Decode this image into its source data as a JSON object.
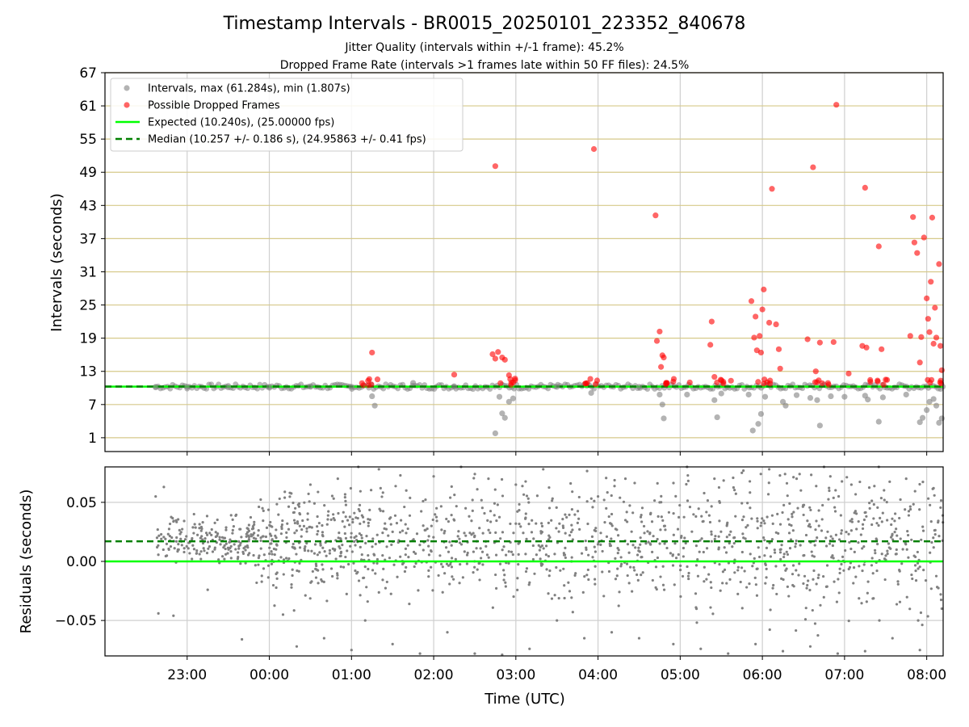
{
  "figure": {
    "title": "Timestamp Intervals - BR0015_20250101_223352_840678",
    "subtitle_1": "Jitter Quality (intervals within +/-1 frame): 45.2%",
    "subtitle_2": "Dropped Frame Rate (intervals >1 frames late within 50 FF files): 24.5%"
  },
  "chart_data": [
    {
      "type": "scatter",
      "ylabel": "Intervals (seconds)",
      "ylim": [
        -1.5,
        67
      ],
      "xlim": [
        "22:00",
        "08:12"
      ],
      "yticks": [
        "1",
        "7",
        "13",
        "19",
        "25",
        "31",
        "37",
        "43",
        "49",
        "55",
        "61",
        "67"
      ],
      "grid": true,
      "legend_position": "top-left",
      "legend": [
        {
          "label": "Intervals, max (61.284s), min (1.807s)",
          "color": "#808080",
          "kind": "marker"
        },
        {
          "label": "Possible Dropped Frames",
          "color": "#ff0000",
          "kind": "marker"
        },
        {
          "label": "Expected (10.240s), (25.00000 fps)",
          "color": "#00ff00",
          "kind": "solid-line"
        },
        {
          "label": "Median (10.257 +/- 0.186 s), (24.95863 +/- 0.41 fps)",
          "color": "#008000",
          "kind": "dashed-line"
        }
      ],
      "expected": 10.24,
      "median": 10.257,
      "series": [
        {
          "name": "Intervals, max (61.284s), min (1.807s)",
          "color": "#808080",
          "points": [
            [
              "22:37",
              10.1
            ],
            [
              "23:00",
              10.2
            ],
            [
              "23:30",
              10.1
            ],
            [
              "00:00",
              10.2
            ],
            [
              "00:30",
              10.3
            ],
            [
              "01:00",
              10.2
            ],
            [
              "01:15",
              8.5
            ],
            [
              "01:17",
              6.8
            ],
            [
              "01:45",
              10.9
            ],
            [
              "02:15",
              10.3
            ],
            [
              "02:45",
              1.8
            ],
            [
              "02:48",
              8.4
            ],
            [
              "02:50",
              5.4
            ],
            [
              "02:52",
              4.6
            ],
            [
              "02:55",
              7.5
            ],
            [
              "02:58",
              8.1
            ],
            [
              "03:30",
              10.2
            ],
            [
              "03:55",
              9.1
            ],
            [
              "04:30",
              10.2
            ],
            [
              "04:45",
              8.8
            ],
            [
              "04:48",
              4.5
            ],
            [
              "04:47",
              7.0
            ],
            [
              "05:05",
              8.8
            ],
            [
              "05:25",
              7.8
            ],
            [
              "05:27",
              4.7
            ],
            [
              "05:30",
              9.0
            ],
            [
              "05:50",
              8.8
            ],
            [
              "05:53",
              2.3
            ],
            [
              "05:57",
              3.5
            ],
            [
              "05:59",
              5.3
            ],
            [
              "06:02",
              8.4
            ],
            [
              "06:15",
              7.5
            ],
            [
              "06:17",
              6.8
            ],
            [
              "06:25",
              8.7
            ],
            [
              "06:35",
              8.2
            ],
            [
              "06:40",
              7.8
            ],
            [
              "06:42",
              3.2
            ],
            [
              "06:50",
              8.5
            ],
            [
              "07:00",
              8.4
            ],
            [
              "07:15",
              8.6
            ],
            [
              "07:17",
              7.9
            ],
            [
              "07:25",
              3.9
            ],
            [
              "07:28",
              8.3
            ],
            [
              "07:45",
              8.8
            ],
            [
              "07:55",
              3.8
            ],
            [
              "07:57",
              4.6
            ],
            [
              "08:00",
              6.0
            ],
            [
              "08:02",
              7.5
            ],
            [
              "08:05",
              8.0
            ],
            [
              "08:07",
              6.8
            ],
            [
              "08:09",
              3.7
            ],
            [
              "08:11",
              4.5
            ]
          ]
        },
        {
          "name": "Possible Dropped Frames",
          "color": "#ff0000",
          "points": [
            [
              "01:13",
              11.6
            ],
            [
              "01:15",
              16.4
            ],
            [
              "02:15",
              12.4
            ],
            [
              "02:43",
              16.1
            ],
            [
              "02:45",
              15.3
            ],
            [
              "02:45",
              50.1
            ],
            [
              "02:47",
              16.5
            ],
            [
              "02:50",
              15.5
            ],
            [
              "02:52",
              15.1
            ],
            [
              "02:55",
              12.3
            ],
            [
              "02:58",
              11.0
            ],
            [
              "03:57",
              53.2
            ],
            [
              "04:42",
              41.2
            ],
            [
              "04:43",
              18.5
            ],
            [
              "04:45",
              20.2
            ],
            [
              "04:46",
              13.8
            ],
            [
              "04:47",
              15.9
            ],
            [
              "04:48",
              15.5
            ],
            [
              "05:07",
              11.0
            ],
            [
              "05:22",
              17.8
            ],
            [
              "05:23",
              22.0
            ],
            [
              "05:25",
              12.0
            ],
            [
              "05:52",
              25.7
            ],
            [
              "05:54",
              19.1
            ],
            [
              "05:55",
              22.9
            ],
            [
              "05:56",
              16.8
            ],
            [
              "05:58",
              19.4
            ],
            [
              "05:59",
              16.4
            ],
            [
              "06:00",
              24.2
            ],
            [
              "06:01",
              27.8
            ],
            [
              "06:05",
              21.8
            ],
            [
              "06:07",
              46.0
            ],
            [
              "06:10",
              21.5
            ],
            [
              "06:12",
              17.0
            ],
            [
              "06:13",
              13.5
            ],
            [
              "06:33",
              18.8
            ],
            [
              "06:37",
              49.9
            ],
            [
              "06:39",
              13.0
            ],
            [
              "06:42",
              18.2
            ],
            [
              "06:52",
              18.3
            ],
            [
              "06:54",
              61.2
            ],
            [
              "07:03",
              12.6
            ],
            [
              "07:13",
              17.6
            ],
            [
              "07:15",
              46.2
            ],
            [
              "07:16",
              17.3
            ],
            [
              "07:25",
              35.6
            ],
            [
              "07:27",
              17.0
            ],
            [
              "07:30",
              11.5
            ],
            [
              "07:48",
              19.4
            ],
            [
              "07:50",
              40.9
            ],
            [
              "07:51",
              36.3
            ],
            [
              "07:53",
              34.4
            ],
            [
              "07:55",
              14.6
            ],
            [
              "07:56",
              19.2
            ],
            [
              "07:58",
              37.2
            ],
            [
              "08:00",
              26.2
            ],
            [
              "08:01",
              22.5
            ],
            [
              "08:02",
              20.1
            ],
            [
              "08:03",
              29.2
            ],
            [
              "08:04",
              40.8
            ],
            [
              "08:05",
              18.0
            ],
            [
              "08:06",
              24.5
            ],
            [
              "08:07",
              19.1
            ],
            [
              "08:09",
              32.4
            ],
            [
              "08:10",
              17.6
            ],
            [
              "08:11",
              13.2
            ]
          ]
        }
      ]
    },
    {
      "type": "scatter",
      "ylabel": "Residuals (seconds)",
      "xlabel": "Time (UTC)",
      "ylim": [
        -0.08,
        0.08
      ],
      "yticks": [
        "0.05",
        "0.00",
        "−0.05"
      ],
      "xticks": [
        "23:00",
        "00:00",
        "01:00",
        "02:00",
        "03:00",
        "04:00",
        "05:00",
        "06:00",
        "07:00",
        "08:00"
      ],
      "grid": true,
      "expected": 0.0,
      "median": 0.017,
      "series": [
        {
          "color": "#808080",
          "points": [
            [
              "22:37",
              0.055
            ],
            [
              "22:38",
              0.02
            ],
            [
              "22:39",
              -0.044
            ],
            [
              "22:43",
              0.063
            ],
            [
              "22:50",
              -0.046
            ],
            [
              "23:05",
              0.04
            ],
            [
              "23:15",
              -0.024
            ],
            [
              "23:40",
              -0.066
            ],
            [
              "23:55",
              0.045
            ],
            [
              "00:10",
              -0.045
            ],
            [
              "00:15",
              0.058
            ],
            [
              "00:20",
              -0.072
            ],
            [
              "00:30",
              0.065
            ],
            [
              "00:40",
              -0.065
            ],
            [
              "00:50",
              0.07
            ],
            [
              "01:00",
              -0.075
            ],
            [
              "01:05",
              0.08
            ],
            [
              "01:10",
              -0.05
            ],
            [
              "01:20",
              0.078
            ],
            [
              "01:30",
              -0.07
            ],
            [
              "01:40",
              0.06
            ],
            [
              "01:50",
              -0.078
            ],
            [
              "02:00",
              0.072
            ],
            [
              "02:10",
              -0.06
            ],
            [
              "02:20",
              0.08
            ],
            [
              "02:30",
              -0.078
            ],
            [
              "02:40",
              0.07
            ],
            [
              "02:50",
              -0.079
            ],
            [
              "03:00",
              0.065
            ],
            [
              "03:10",
              -0.074
            ],
            [
              "03:20",
              0.078
            ],
            [
              "03:30",
              -0.05
            ],
            [
              "03:40",
              0.066
            ],
            [
              "03:50",
              -0.065
            ],
            [
              "04:00",
              0.055
            ],
            [
              "04:10",
              -0.06
            ],
            [
              "04:20",
              0.07
            ],
            [
              "04:30",
              -0.065
            ],
            [
              "04:45",
              0.05
            ],
            [
              "04:55",
              -0.07
            ],
            [
              "05:05",
              0.08
            ],
            [
              "05:15",
              -0.074
            ],
            [
              "05:25",
              0.07
            ],
            [
              "05:35",
              -0.078
            ],
            [
              "05:45",
              0.075
            ],
            [
              "05:55",
              -0.07
            ],
            [
              "06:05",
              0.078
            ],
            [
              "06:15",
              -0.076
            ],
            [
              "06:25",
              0.07
            ],
            [
              "06:35",
              -0.072
            ],
            [
              "06:45",
              0.08
            ],
            [
              "06:55",
              -0.078
            ],
            [
              "07:05",
              0.065
            ],
            [
              "07:15",
              -0.076
            ],
            [
              "07:25",
              0.08
            ],
            [
              "07:35",
              -0.065
            ],
            [
              "07:45",
              0.07
            ],
            [
              "07:55",
              -0.075
            ],
            [
              "08:05",
              0.062
            ],
            [
              "08:11",
              -0.04
            ]
          ]
        }
      ]
    }
  ]
}
